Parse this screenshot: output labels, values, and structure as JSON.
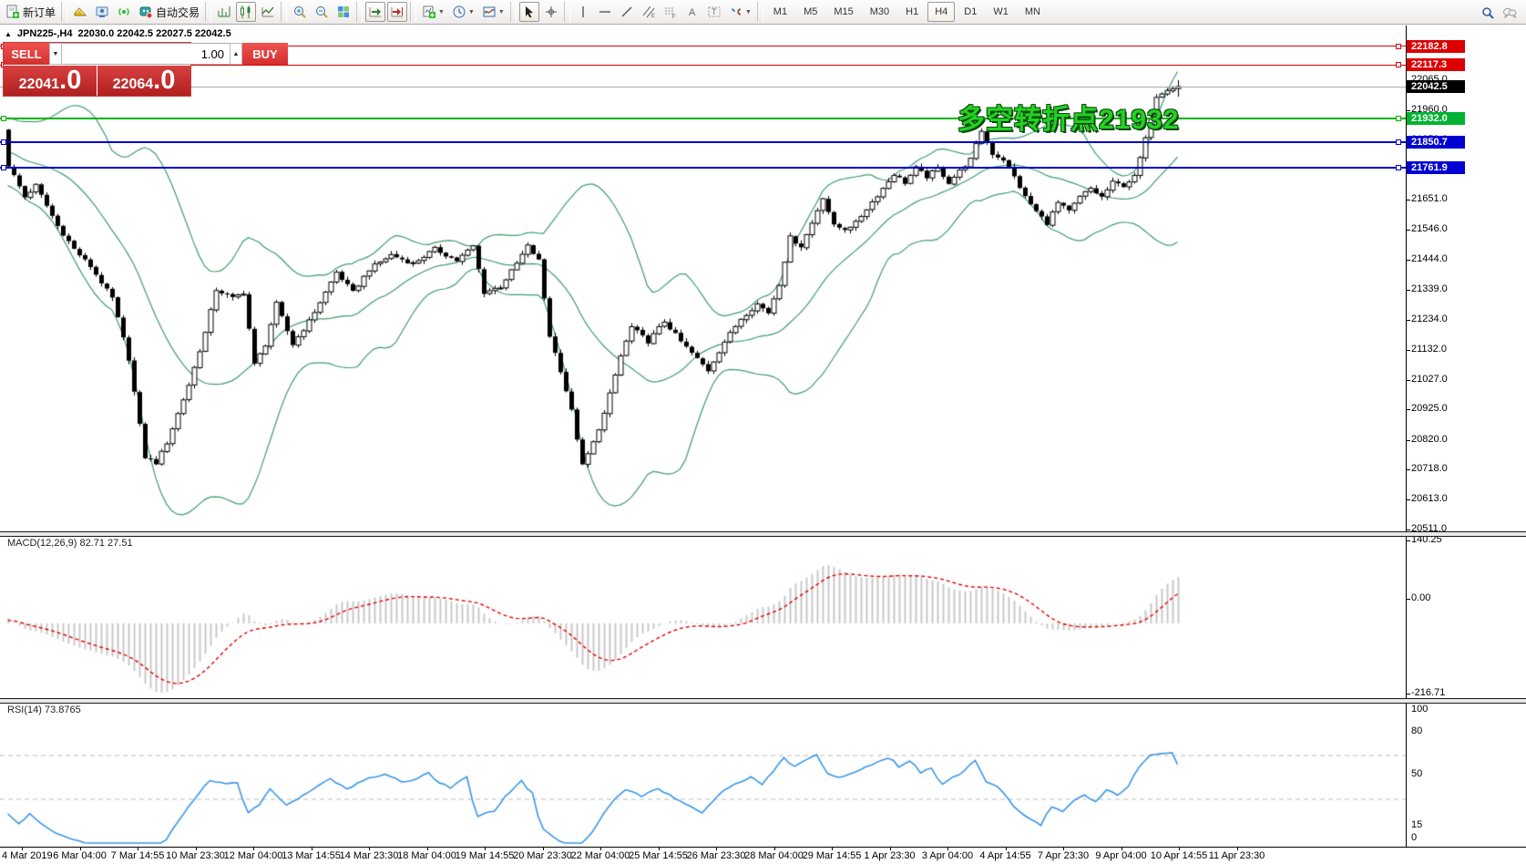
{
  "toolbar": {
    "new_order_label": "新订单",
    "autotrading_label": "自动交易",
    "timeframes": [
      "M1",
      "M5",
      "M15",
      "M30",
      "H1",
      "H4",
      "D1",
      "W1",
      "MN"
    ],
    "active_timeframe": "H4"
  },
  "chart": {
    "collapse_arrow": "▲",
    "symbol_period": "JPN225-,H4",
    "ohlc": "22030.0 22042.5 22027.5 22042.5"
  },
  "trade_panel": {
    "sell_label": "SELL",
    "buy_label": "BUY",
    "volume": "1.00",
    "sell_price_main": "22041",
    "sell_price_frac": ".0",
    "buy_price_main": "22064",
    "buy_price_frac": ".0"
  },
  "annotation": {
    "text": "多空转折点21932",
    "color": "#23d123"
  },
  "price_axis": {
    "ticks": [
      22170.0,
      22065.0,
      21960.0,
      21858.0,
      21755.0,
      21651.0,
      21546.0,
      21444.0,
      21339.0,
      21234.0,
      21132.0,
      21027.0,
      20925.0,
      20820.0,
      20718.0,
      20613.0,
      20511.0
    ],
    "badges": [
      {
        "text": "22182.8",
        "price": 22182.8,
        "bg": "#dd0000"
      },
      {
        "text": "22117.3",
        "price": 22117.3,
        "bg": "#dd0000"
      },
      {
        "text": "22042.5",
        "price": 22042.5,
        "bg": "#000000"
      },
      {
        "text": "21932.0",
        "price": 21932.0,
        "bg": "#00b432"
      },
      {
        "text": "21850.7",
        "price": 21850.7,
        "bg": "#0000d2"
      },
      {
        "text": "21761.9",
        "price": 21761.9,
        "bg": "#0000d2"
      }
    ]
  },
  "hlines": [
    {
      "price": 22182.8,
      "color": "#e00000",
      "width": 1
    },
    {
      "price": 22117.3,
      "color": "#e00000",
      "width": 1
    },
    {
      "price": 21932.0,
      "color": "#00b400",
      "width": 2
    },
    {
      "price": 21850.7,
      "color": "#0000c8",
      "width": 2
    },
    {
      "price": 21761.9,
      "color": "#0000c8",
      "width": 2
    }
  ],
  "bid_line": {
    "price": 22042.5,
    "color": "#aaaaaa"
  },
  "macd_panel": {
    "label": "MACD(12,26,9) 82.71 27.51",
    "axis_labels": [
      "140.25",
      "0.00",
      "-216.71"
    ],
    "max": 140.25,
    "min": -216.71,
    "histogram_color": "#c8c8c8",
    "signal_color": "#e00000"
  },
  "rsi_panel": {
    "label": "RSI(14) 73.8765",
    "axis_labels": [
      "100",
      "80",
      "50",
      "15",
      "0"
    ],
    "levels": [
      80,
      50,
      15
    ],
    "line_color": "#3a96e8",
    "level_color": "#bbbbbb"
  },
  "time_axis": {
    "labels": [
      "4 Mar 2019",
      "6 Mar 04:00",
      "7 Mar 14:55",
      "10 Mar 23:30",
      "12 Mar 04:00",
      "13 Mar 14:55",
      "14 Mar 23:30",
      "18 Mar 04:00",
      "19 Mar 14:55",
      "20 Mar 23:30",
      "22 Mar 04:00",
      "25 Mar 14:55",
      "26 Mar 23:30",
      "28 Mar 04:00",
      "29 Mar 14:55",
      "1 Apr 23:30",
      "3 Apr 04:00",
      "4 Apr 14:55",
      "7 Apr 23:30",
      "9 Apr 04:00",
      "10 Apr 14:55",
      "11 Apr 23:30"
    ]
  },
  "chart_data": {
    "type": "candlestick",
    "symbol": "JPN225-",
    "timeframe": "H4",
    "last_close": 22042.5,
    "last_high": 22065.0,
    "visible_price_range": [
      20511.0,
      22235.0
    ],
    "key_levels": [
      22182.8,
      22117.3,
      21932.0,
      21850.7,
      21761.9
    ],
    "bollinger": {
      "period": 20,
      "deviation": 2,
      "color": "#3e9c6e"
    },
    "macd": {
      "fast": 12,
      "slow": 26,
      "signal": 9,
      "value": 82.71,
      "signal_value": 27.51,
      "scale_max": 140.25,
      "scale_min": -216.71
    },
    "rsi": {
      "period": 14,
      "value": 73.8765
    },
    "candle_count": 215,
    "price_path": [
      [
        0,
        21770
      ],
      [
        3,
        21660
      ],
      [
        5,
        21700
      ],
      [
        9,
        21560
      ],
      [
        12,
        21480
      ],
      [
        15,
        21420
      ],
      [
        19,
        21310
      ],
      [
        22,
        21100
      ],
      [
        24,
        20870
      ],
      [
        25,
        20760
      ],
      [
        27,
        20740
      ],
      [
        29,
        20810
      ],
      [
        33,
        21010
      ],
      [
        36,
        21190
      ],
      [
        38,
        21340
      ],
      [
        41,
        21310
      ],
      [
        43,
        21330
      ],
      [
        45,
        21080
      ],
      [
        47,
        21150
      ],
      [
        49,
        21290
      ],
      [
        52,
        21150
      ],
      [
        55,
        21230
      ],
      [
        58,
        21330
      ],
      [
        60,
        21400
      ],
      [
        63,
        21330
      ],
      [
        66,
        21410
      ],
      [
        70,
        21460
      ],
      [
        74,
        21430
      ],
      [
        78,
        21480
      ],
      [
        82,
        21440
      ],
      [
        85,
        21490
      ],
      [
        87,
        21330
      ],
      [
        90,
        21350
      ],
      [
        93,
        21430
      ],
      [
        95,
        21490
      ],
      [
        97,
        21440
      ],
      [
        99,
        21180
      ],
      [
        101,
        21060
      ],
      [
        103,
        20920
      ],
      [
        105,
        20730
      ],
      [
        107,
        20810
      ],
      [
        109,
        20910
      ],
      [
        112,
        21110
      ],
      [
        114,
        21210
      ],
      [
        117,
        21160
      ],
      [
        120,
        21230
      ],
      [
        123,
        21160
      ],
      [
        126,
        21100
      ],
      [
        128,
        21060
      ],
      [
        131,
        21160
      ],
      [
        134,
        21240
      ],
      [
        137,
        21290
      ],
      [
        139,
        21260
      ],
      [
        141,
        21360
      ],
      [
        143,
        21520
      ],
      [
        145,
        21490
      ],
      [
        147,
        21570
      ],
      [
        149,
        21660
      ],
      [
        151,
        21560
      ],
      [
        153,
        21550
      ],
      [
        155,
        21570
      ],
      [
        157,
        21620
      ],
      [
        160,
        21690
      ],
      [
        162,
        21740
      ],
      [
        164,
        21710
      ],
      [
        166,
        21760
      ],
      [
        168,
        21730
      ],
      [
        170,
        21760
      ],
      [
        172,
        21710
      ],
      [
        174,
        21750
      ],
      [
        176,
        21790
      ],
      [
        178,
        21890
      ],
      [
        180,
        21810
      ],
      [
        182,
        21790
      ],
      [
        184,
        21730
      ],
      [
        186,
        21660
      ],
      [
        188,
        21610
      ],
      [
        190,
        21570
      ],
      [
        192,
        21640
      ],
      [
        194,
        21610
      ],
      [
        196,
        21660
      ],
      [
        198,
        21690
      ],
      [
        200,
        21660
      ],
      [
        202,
        21710
      ],
      [
        204,
        21700
      ],
      [
        206,
        21730
      ],
      [
        208,
        21860
      ],
      [
        210,
        22010
      ],
      [
        212,
        22035
      ],
      [
        214,
        22042.5
      ]
    ]
  }
}
